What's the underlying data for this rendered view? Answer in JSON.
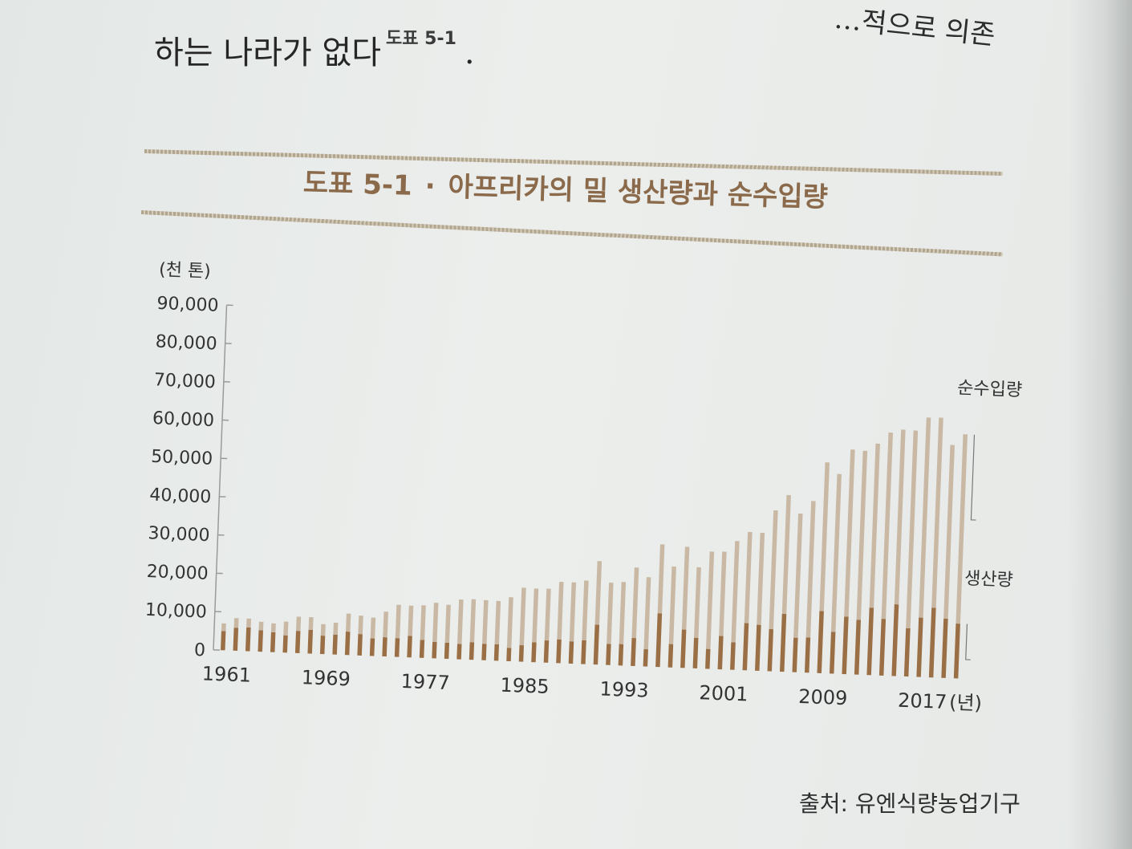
{
  "page": {
    "top_right_text": "…적으로 의존",
    "top_line_text": "하는 나라가 없다",
    "top_line_ref": "도표 5-1",
    "top_line_end": ".",
    "figure_label": "도표 5-1",
    "figure_separator": "·",
    "figure_title": "아프리카의 밀 생산량과 순수입량",
    "source": "출처: 유엔식량농업기구"
  },
  "colors": {
    "production": "#9a6f45",
    "net_import": "#c9b9a4",
    "axis": "#9a9a9a",
    "title": "#8a6a4a"
  },
  "chart_data": {
    "type": "bar",
    "stacked": true,
    "unit_label": "(천 톤)",
    "x_unit_label": "(년)",
    "ylim": [
      0,
      90000
    ],
    "yticks": [
      "0",
      "10,000",
      "20,000",
      "30,000",
      "40,000",
      "50,000",
      "60,000",
      "70,000",
      "80,000",
      "90,000"
    ],
    "ytick_values": [
      0,
      10000,
      20000,
      30000,
      40000,
      50000,
      60000,
      70000,
      80000,
      90000
    ],
    "xtick_labels": [
      "1961",
      "1969",
      "1977",
      "1985",
      "1993",
      "2001",
      "2009",
      "2017"
    ],
    "years": [
      1961,
      1962,
      1963,
      1964,
      1965,
      1966,
      1967,
      1968,
      1969,
      1970,
      1971,
      1972,
      1973,
      1974,
      1975,
      1976,
      1977,
      1978,
      1979,
      1980,
      1981,
      1982,
      1983,
      1984,
      1985,
      1986,
      1987,
      1988,
      1989,
      1990,
      1991,
      1992,
      1993,
      1994,
      1995,
      1996,
      1997,
      1998,
      1999,
      2000,
      2001,
      2002,
      2003,
      2004,
      2005,
      2006,
      2007,
      2008,
      2009,
      2010,
      2011,
      2012,
      2013,
      2014,
      2015,
      2016,
      2017,
      2018,
      2019,
      2020
    ],
    "series": [
      {
        "name": "생산량",
        "values": [
          5000,
          6000,
          6200,
          5600,
          5200,
          4500,
          5800,
          6200,
          4800,
          5200,
          6100,
          5600,
          4600,
          5000,
          4900,
          5600,
          4700,
          4300,
          4200,
          4000,
          4600,
          4300,
          4300,
          3500,
          4300,
          5200,
          5800,
          6200,
          5800,
          6200,
          10400,
          5500,
          5600,
          7300,
          4500,
          14000,
          6100,
          10000,
          8000,
          5200,
          8700,
          7200,
          12300,
          12000,
          11000,
          15100,
          9000,
          9200,
          16200,
          10900,
          15000,
          14300,
          17600,
          14800,
          18700,
          12600,
          15500,
          18200,
          15500,
          14300
        ]
      },
      {
        "name": "순수입량",
        "values": [
          2000,
          2500,
          2300,
          2200,
          2300,
          3600,
          3700,
          3300,
          3000,
          3100,
          4700,
          4800,
          5400,
          6700,
          8700,
          7900,
          9000,
          10200,
          9900,
          11600,
          11200,
          11400,
          11300,
          13200,
          15000,
          14000,
          13500,
          15000,
          15400,
          15600,
          16600,
          16000,
          16200,
          18400,
          18800,
          18000,
          20200,
          21600,
          18400,
          25400,
          22000,
          26400,
          23800,
          24000,
          31000,
          31000,
          32400,
          35600,
          38800,
          41200,
          43600,
          44100,
          42800,
          48600,
          45600,
          51600,
          52200,
          49600,
          45300,
          49400
        ]
      }
    ]
  }
}
